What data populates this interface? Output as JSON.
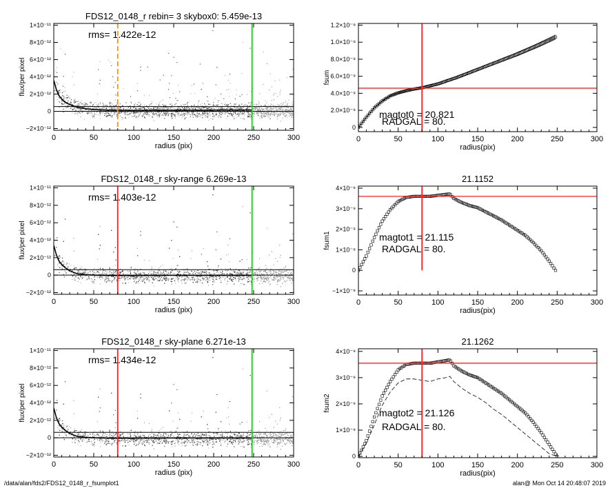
{
  "footer": {
    "path": "/data/alan/fds2/FDS12_0148_r_fsumplot1",
    "stamp": "alan@  Mon Oct 14 20:48:07 2019"
  },
  "chart_data": [
    {
      "id": "p1",
      "type": "scatter",
      "title": "FDS12_0148_r rebin= 3    skybox0:  5.459e-13",
      "annotation": "rms= 1.422e-12",
      "xlabel": "radius (pix)",
      "ylabel": "flux/per pixel",
      "xlim": [
        0,
        300
      ],
      "ylim": [
        -2.2e-12,
        1.02e-11
      ],
      "xticks": [
        0,
        50,
        100,
        150,
        200,
        250,
        300
      ],
      "yticks": [
        {
          "v": -2e-12,
          "label": "−2×10⁻¹²"
        },
        {
          "v": 0,
          "label": "0"
        },
        {
          "v": 2e-12,
          "label": "2×10⁻¹²"
        },
        {
          "v": 4e-12,
          "label": "4×10⁻¹²"
        },
        {
          "v": 6e-12,
          "label": "6×10⁻¹²"
        },
        {
          "v": 8e-12,
          "label": "8×10⁻¹²"
        },
        {
          "v": 1e-11,
          "label": "1×10⁻¹¹"
        }
      ],
      "hlines": [
        {
          "y": 5.459e-13,
          "color": "#000000"
        },
        {
          "y": 0,
          "color": "#000000"
        }
      ],
      "vlines": [
        {
          "x": 80,
          "color": "#ff8c1a",
          "dash": true
        },
        {
          "x": 248,
          "color": "#00dd00"
        }
      ],
      "profile": {
        "x": [
          0,
          3,
          6,
          10,
          15,
          20,
          25,
          30,
          40,
          50,
          60,
          80,
          100,
          150,
          200,
          248
        ],
        "y": [
          3.6e-12,
          2.6e-12,
          1.9e-12,
          1.4e-12,
          1e-12,
          8e-13,
          6e-13,
          4.5e-13,
          3e-13,
          2e-13,
          1.5e-13,
          1.2e-13,
          1.2e-13,
          1.3e-13,
          1.4e-13,
          1.5e-13
        ]
      },
      "scatter_extent": 300
    },
    {
      "id": "p2",
      "type": "line",
      "title": "",
      "annotations": [
        "magtot0 =  20.821",
        "RADGAL =     80."
      ],
      "xlabel": "radius(pix)",
      "ylabel": "fsum",
      "xlim": [
        0,
        300
      ],
      "ylim": [
        -5e-10,
        1.22e-08
      ],
      "xticks": [
        0,
        50,
        100,
        150,
        200,
        250,
        300
      ],
      "yticks": [
        {
          "v": 0,
          "label": "0"
        },
        {
          "v": 2e-09,
          "label": "2.0×10⁻⁹"
        },
        {
          "v": 4e-09,
          "label": "4.0×10⁻⁹"
        },
        {
          "v": 6e-09,
          "label": "6.0×10⁻⁹"
        },
        {
          "v": 8e-09,
          "label": "8.0×10⁻⁹"
        },
        {
          "v": 1e-08,
          "label": "1.0×10⁻⁸"
        },
        {
          "v": 1.2e-08,
          "label": "1.2×10⁻⁸"
        }
      ],
      "hlines": [
        {
          "y": 4.6e-09,
          "color": "#ff2020"
        }
      ],
      "vlines": [
        {
          "x": 80,
          "color": "#ff2020"
        }
      ],
      "series": [
        {
          "x": [
            0,
            10,
            20,
            30,
            40,
            50,
            60,
            70,
            80,
            100,
            125,
            150,
            175,
            200,
            225,
            248
          ],
          "y": [
            0,
            1.2e-09,
            2.3e-09,
            3.1e-09,
            3.7e-09,
            4.05e-09,
            4.3e-09,
            4.5e-09,
            4.65e-09,
            5.1e-09,
            5.9e-09,
            6.8e-09,
            7.7e-09,
            8.6e-09,
            9.6e-09,
            1.06e-08
          ]
        }
      ],
      "envelope": 2.5e-10
    },
    {
      "id": "p3",
      "type": "scatter",
      "title": "FDS12_0148_r sky-range  6.269e-13",
      "annotation": "rms= 1.403e-12",
      "xlabel": "radius (pix)",
      "ylabel": "flux/per pixel",
      "xlim": [
        0,
        300
      ],
      "ylim": [
        -2.2e-12,
        1.02e-11
      ],
      "xticks": [
        0,
        50,
        100,
        150,
        200,
        250,
        300
      ],
      "yticks": [
        {
          "v": -2e-12,
          "label": "−2×10⁻¹²"
        },
        {
          "v": 0,
          "label": "0"
        },
        {
          "v": 2e-12,
          "label": "2×10⁻¹²"
        },
        {
          "v": 4e-12,
          "label": "4×10⁻¹²"
        },
        {
          "v": 6e-12,
          "label": "6×10⁻¹²"
        },
        {
          "v": 8e-12,
          "label": "8×10⁻¹²"
        },
        {
          "v": 1e-11,
          "label": "1×10⁻¹¹"
        }
      ],
      "hlines": [
        {
          "y": 6.269e-13,
          "color": "#000000"
        },
        {
          "y": 0,
          "color": "#000000"
        }
      ],
      "vlines": [
        {
          "x": 80,
          "color": "#ff2020"
        },
        {
          "x": 248,
          "color": "#00dd00"
        }
      ],
      "profile": {
        "x": [
          0,
          3,
          6,
          10,
          15,
          20,
          25,
          30,
          40,
          50,
          60,
          80,
          100,
          150,
          200,
          248
        ],
        "y": [
          3.4e-12,
          2.4e-12,
          1.7e-12,
          1.2e-12,
          8e-13,
          5e-13,
          3e-13,
          1.5e-13,
          5e-14,
          0,
          -3e-14,
          -5e-14,
          -4e-14,
          -3e-14,
          -2e-14,
          -2e-14
        ]
      },
      "scatter_extent": 300
    },
    {
      "id": "p4",
      "type": "line",
      "title": "21.1152",
      "annotations": [
        "magtot1 =  21.115",
        "RADGAL =     80."
      ],
      "xlabel": "radius(pix)",
      "ylabel": "fsum1",
      "xlim": [
        0,
        300
      ],
      "ylim": [
        -1.2e-09,
        4.1e-09
      ],
      "xticks": [
        0,
        50,
        100,
        150,
        200,
        250,
        300
      ],
      "yticks": [
        {
          "v": -1e-09,
          "label": "−1×10⁻⁹"
        },
        {
          "v": 0,
          "label": "0"
        },
        {
          "v": 1e-09,
          "label": "1×10⁻⁹"
        },
        {
          "v": 2e-09,
          "label": "2×10⁻⁹"
        },
        {
          "v": 3e-09,
          "label": "3×10⁻⁹"
        },
        {
          "v": 4e-09,
          "label": "4×10⁻⁹"
        }
      ],
      "hlines": [
        {
          "y": 3.6e-09,
          "color": "#ff2020"
        }
      ],
      "vlines": [
        {
          "x": 80,
          "color": "#ff2020",
          "ymin": 0
        }
      ],
      "series": [
        {
          "x": [
            0,
            10,
            20,
            30,
            40,
            50,
            60,
            70,
            80,
            90,
            100,
            110,
            115,
            120,
            130,
            140,
            150,
            160,
            170,
            180,
            190,
            200,
            210,
            220,
            230,
            240,
            248
          ],
          "y": [
            0,
            7e-10,
            1.6e-09,
            2.4e-09,
            2.95e-09,
            3.35e-09,
            3.55e-09,
            3.6e-09,
            3.6e-09,
            3.6e-09,
            3.65e-09,
            3.7e-09,
            3.72e-09,
            3.5e-09,
            3.3e-09,
            3.15e-09,
            3.05e-09,
            2.85e-09,
            2.65e-09,
            2.45e-09,
            2.2e-09,
            1.95e-09,
            1.7e-09,
            1.35e-09,
            9.5e-10,
            4.5e-10,
            0
          ]
        }
      ]
    },
    {
      "id": "p5",
      "type": "scatter",
      "title": "FDS12_0148_r sky-plane  6.271e-13",
      "annotation": "rms= 1.434e-12",
      "xlabel": "radius (pix)",
      "ylabel": "flux/per pixel",
      "xlim": [
        0,
        300
      ],
      "ylim": [
        -2.2e-12,
        1.02e-11
      ],
      "xticks": [
        0,
        50,
        100,
        150,
        200,
        250,
        300
      ],
      "yticks": [
        {
          "v": -2e-12,
          "label": "−2×10⁻¹²"
        },
        {
          "v": 0,
          "label": "0"
        },
        {
          "v": 2e-12,
          "label": "2×10⁻¹²"
        },
        {
          "v": 4e-12,
          "label": "4×10⁻¹²"
        },
        {
          "v": 6e-12,
          "label": "6×10⁻¹²"
        },
        {
          "v": 8e-12,
          "label": "8×10⁻¹²"
        },
        {
          "v": 1e-11,
          "label": "1×10⁻¹¹"
        }
      ],
      "hlines": [
        {
          "y": 6.271e-13,
          "color": "#000000"
        },
        {
          "y": 0,
          "color": "#000000"
        }
      ],
      "vlines": [
        {
          "x": 80,
          "color": "#ff2020"
        },
        {
          "x": 248,
          "color": "#00dd00"
        }
      ],
      "profile": {
        "x": [
          0,
          3,
          6,
          10,
          15,
          20,
          25,
          30,
          40,
          50,
          60,
          80,
          100,
          150,
          200,
          248
        ],
        "y": [
          3.4e-12,
          2.4e-12,
          1.7e-12,
          1.2e-12,
          8e-13,
          5e-13,
          3e-13,
          1.5e-13,
          5e-14,
          0,
          -3e-14,
          -5e-14,
          -4e-14,
          -3e-14,
          -2e-14,
          -2e-14
        ]
      },
      "scatter_extent": 300
    },
    {
      "id": "p6",
      "type": "line",
      "title": "21.1262",
      "annotations": [
        "magtot2 =  21.126",
        "RADGAL =     80."
      ],
      "xlabel": "radius(pix)",
      "ylabel": "fsum2",
      "xlim": [
        0,
        300
      ],
      "ylim": [
        -5e-11,
        4.1e-09
      ],
      "xticks": [
        0,
        50,
        100,
        150,
        200,
        250,
        300
      ],
      "yticks": [
        {
          "v": 0,
          "label": "0"
        },
        {
          "v": 1e-09,
          "label": "1×10⁻⁹"
        },
        {
          "v": 2e-09,
          "label": "2×10⁻⁹"
        },
        {
          "v": 3e-09,
          "label": "3×10⁻⁹"
        },
        {
          "v": 4e-09,
          "label": "4×10⁻⁹"
        }
      ],
      "hlines": [
        {
          "y": 3.55e-09,
          "color": "#ff2020"
        }
      ],
      "vlines": [
        {
          "x": 80,
          "color": "#ff2020"
        }
      ],
      "series": [
        {
          "x": [
            0,
            10,
            20,
            30,
            40,
            50,
            60,
            70,
            80,
            90,
            100,
            110,
            115,
            120,
            130,
            140,
            150,
            160,
            170,
            180,
            190,
            200,
            210,
            220,
            230,
            240,
            250
          ],
          "y": [
            0,
            6e-10,
            1.5e-09,
            2.3e-09,
            2.85e-09,
            3.3e-09,
            3.5e-09,
            3.55e-09,
            3.55e-09,
            3.55e-09,
            3.6e-09,
            3.65e-09,
            3.68e-09,
            3.45e-09,
            3.25e-09,
            3.1e-09,
            3e-09,
            2.8e-09,
            2.6e-09,
            2.4e-09,
            2.15e-09,
            1.9e-09,
            1.65e-09,
            1.3e-09,
            9e-10,
            4.5e-10,
            0
          ],
          "style": "markers"
        },
        {
          "x": [
            0,
            10,
            20,
            30,
            40,
            50,
            60,
            70,
            80,
            90,
            100,
            110,
            115,
            120,
            130,
            140,
            150,
            160,
            170,
            180,
            190,
            200,
            210,
            220,
            230,
            240,
            250
          ],
          "y": [
            0,
            5e-10,
            1.2e-09,
            1.95e-09,
            2.45e-09,
            2.8e-09,
            2.95e-09,
            2.95e-09,
            2.9e-09,
            2.85e-09,
            2.95e-09,
            3e-09,
            3.05e-09,
            2.85e-09,
            2.6e-09,
            2.4e-09,
            2.25e-09,
            2.05e-09,
            1.8e-09,
            1.6e-09,
            1.35e-09,
            1.1e-09,
            8.5e-10,
            6e-10,
            3.5e-10,
            1e-10,
            0
          ],
          "style": "dashed"
        }
      ]
    }
  ]
}
